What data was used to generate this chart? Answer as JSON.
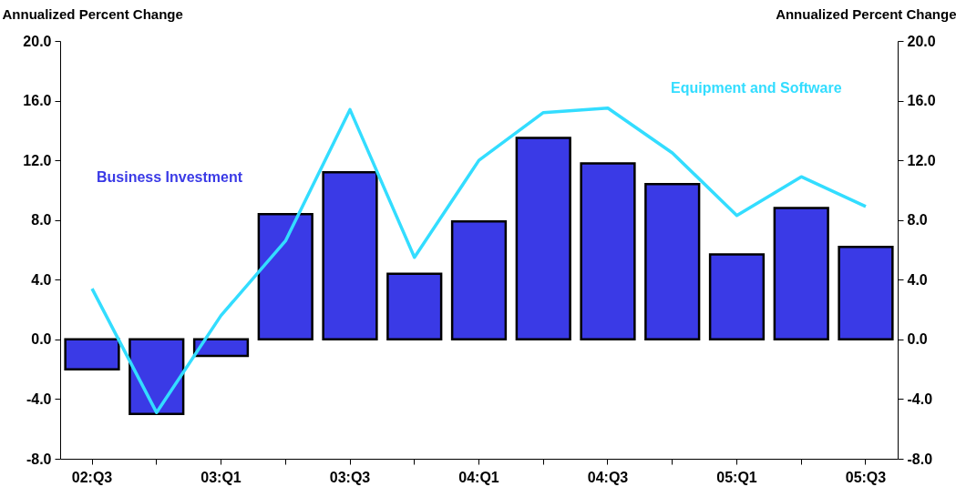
{
  "chart_data": {
    "type": "bar",
    "categories": [
      "02:Q3",
      null,
      "03:Q1",
      null,
      "03:Q3",
      null,
      "04:Q1",
      null,
      "04:Q3",
      null,
      "05:Q1",
      null,
      "05:Q3"
    ],
    "series": [
      {
        "name": "Business Investment",
        "color": "#3a3ae6",
        "values": [
          -2.0,
          -5.0,
          -1.1,
          8.4,
          11.2,
          4.4,
          7.9,
          13.5,
          11.8,
          10.4,
          5.7,
          8.8,
          6.2
        ]
      },
      {
        "name": "Equipment and Software",
        "type": "line",
        "axis": "y2",
        "color": "#33ddff",
        "values": [
          3.4,
          -4.9,
          1.6,
          6.6,
          15.4,
          5.5,
          12.0,
          15.2,
          15.5,
          12.5,
          8.3,
          10.9,
          8.9
        ]
      }
    ],
    "ylabel": "Annualized Percent Change",
    "y2label": "Annualized Percent Change",
    "ylim": [
      -8,
      20
    ],
    "yticks": [
      {
        "value": -8,
        "label": "-8.0"
      },
      {
        "value": -4,
        "label": "-4.0"
      },
      {
        "value": 0,
        "label": "0.0"
      },
      {
        "value": 4,
        "label": "4.0"
      },
      {
        "value": 8,
        "label": "8.0"
      },
      {
        "value": 12,
        "label": "12.0"
      },
      {
        "value": 16,
        "label": "16.0"
      },
      {
        "value": 20,
        "label": "20.0"
      }
    ],
    "y2lim": [
      -8,
      20
    ],
    "y2ticks": [
      {
        "value": -8,
        "label": "-8.0"
      },
      {
        "value": -4,
        "label": "-4.0"
      },
      {
        "value": 0,
        "label": "0.0"
      },
      {
        "value": 4,
        "label": "4.0"
      },
      {
        "value": 8,
        "label": "8.0"
      },
      {
        "value": 12,
        "label": "12.0"
      },
      {
        "value": 16,
        "label": "16.0"
      },
      {
        "value": 20,
        "label": "20.0"
      }
    ],
    "grid": false,
    "marker": "none",
    "line_style": "solid"
  }
}
